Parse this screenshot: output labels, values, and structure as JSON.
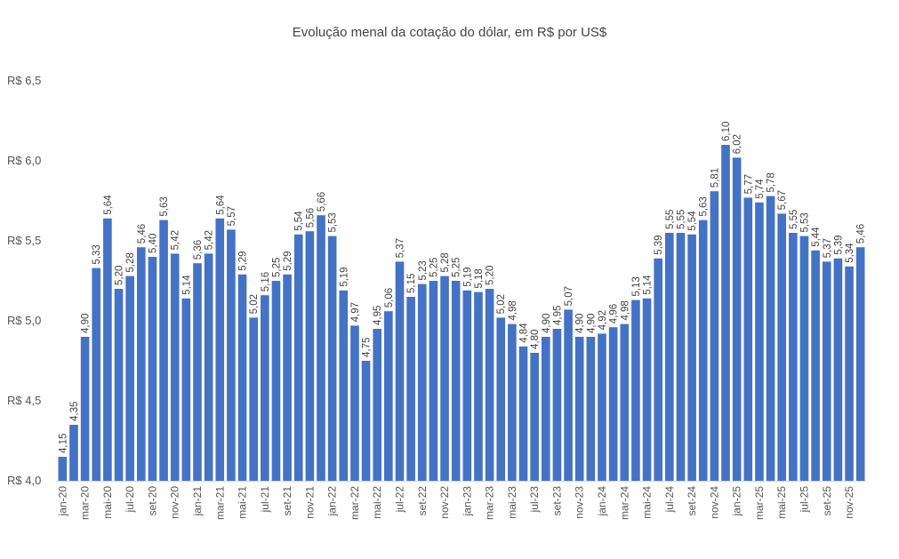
{
  "chart_data": {
    "type": "bar",
    "title": "Evolução menal da cotação do dólar, em R$ por US$",
    "xlabel": "",
    "ylabel": "",
    "ylim": [
      4.0,
      6.5
    ],
    "grid": false,
    "legend": "none",
    "bar_color": "#4472C4",
    "y_ticks": [
      {
        "value": 4.0,
        "label": "R$ 4,0"
      },
      {
        "value": 4.5,
        "label": "R$ 4,5"
      },
      {
        "value": 5.0,
        "label": "R$ 5,0"
      },
      {
        "value": 5.5,
        "label": "R$ 5,5"
      },
      {
        "value": 6.0,
        "label": "R$ 6,0"
      },
      {
        "value": 6.5,
        "label": "R$ 6,5"
      }
    ],
    "categories": [
      "jan-20",
      "fev-20",
      "mar-20",
      "abr-20",
      "mai-20",
      "jun-20",
      "jul-20",
      "ago-20",
      "set-20",
      "out-20",
      "nov-20",
      "dez-20",
      "jan-21",
      "fev-21",
      "mar-21",
      "abr-21",
      "mai-21",
      "jun-21",
      "jul-21",
      "ago-21",
      "set-21",
      "out-21",
      "nov-21",
      "dez-21",
      "jan-22",
      "fev-22",
      "mar-22",
      "abr-22",
      "mai-22",
      "jun-22",
      "jul-22",
      "ago-22",
      "set-22",
      "out-22",
      "nov-22",
      "dez-22",
      "jan-23",
      "fev-23",
      "mar-23",
      "abr-23",
      "mai-23",
      "jun-23",
      "jul-23",
      "ago-23",
      "set-23",
      "out-23",
      "nov-23",
      "dez-23",
      "jan-24",
      "fev-24",
      "mar-24",
      "abr-24",
      "mai-24",
      "jun-24",
      "jul-24",
      "ago-24",
      "set-24",
      "out-24",
      "nov-24",
      "dez-24",
      "jan-25",
      "fev-25",
      "mar-25",
      "abr-25",
      "mai-25",
      "jun-25",
      "jul-25",
      "ago-25",
      "set-25",
      "out-25",
      "nov-25",
      "dez-25"
    ],
    "shown_tick_every": 2,
    "values": [
      4.15,
      4.35,
      4.9,
      5.33,
      5.64,
      5.2,
      5.28,
      5.46,
      5.4,
      5.63,
      5.42,
      5.14,
      5.36,
      5.42,
      5.64,
      5.57,
      5.29,
      5.02,
      5.16,
      5.25,
      5.29,
      5.54,
      5.56,
      5.66,
      5.53,
      5.19,
      4.97,
      4.75,
      4.95,
      5.06,
      5.37,
      5.15,
      5.23,
      5.25,
      5.28,
      5.25,
      5.19,
      5.18,
      5.2,
      5.02,
      4.98,
      4.84,
      4.8,
      4.9,
      4.95,
      5.07,
      4.9,
      4.9,
      4.92,
      4.96,
      4.98,
      5.13,
      5.14,
      5.39,
      5.55,
      5.55,
      5.54,
      5.63,
      5.81,
      6.1,
      6.02,
      5.77,
      5.74,
      5.78,
      5.67,
      5.55,
      5.53,
      5.44,
      5.37,
      5.39,
      5.34,
      5.46
    ],
    "value_labels": [
      "4,15",
      "4,35",
      "4,90",
      "5,33",
      "5,64",
      "5,20",
      "5,28",
      "5,46",
      "5,40",
      "5,63",
      "5,42",
      "5,14",
      "5,36",
      "5,42",
      "5,64",
      "5,57",
      "5,29",
      "5,02",
      "5,16",
      "5,25",
      "5,29",
      "5,54",
      "5,56",
      "5,66",
      "5,53",
      "5,19",
      "4,97",
      "4,75",
      "4,95",
      "5,06",
      "5,37",
      "5,15",
      "5,23",
      "5,25",
      "5,28",
      "5,25",
      "5,19",
      "5,18",
      "5,20",
      "5,02",
      "4,98",
      "4,84",
      "4,80",
      "4,90",
      "4,95",
      "5,07",
      "4,90",
      "4,90",
      "4,92",
      "4,96",
      "4,98",
      "5,13",
      "5,14",
      "5,39",
      "5,55",
      "5,55",
      "5,54",
      "5,63",
      "5,81",
      "6,10",
      "6,02",
      "5,77",
      "5,74",
      "5,78",
      "5,67",
      "5,55",
      "5,53",
      "5,44",
      "5,37",
      "5,39",
      "5,34",
      "5,46"
    ]
  }
}
